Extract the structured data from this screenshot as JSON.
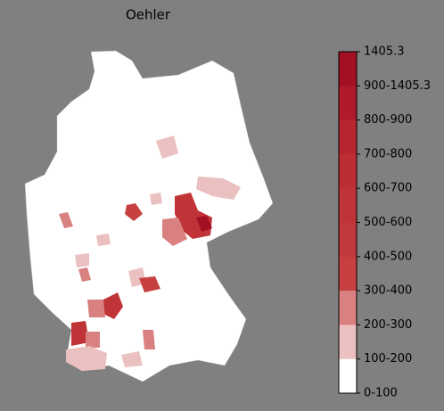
{
  "title": "Oehler",
  "legend": {
    "labels": [
      "1405.3",
      "900-1405.3",
      "800-900",
      "700-800",
      "600-700",
      "500-600",
      "400-500",
      "300-400",
      "200-300",
      "100-200",
      "0-100"
    ],
    "colors": [
      "#a50f24",
      "#b01a2a",
      "#b82530",
      "#bd2e33",
      "#c03336",
      "#c3383a",
      "#c6403f",
      "#d98080",
      "#ebc0c0",
      "#ffffff"
    ]
  }
}
